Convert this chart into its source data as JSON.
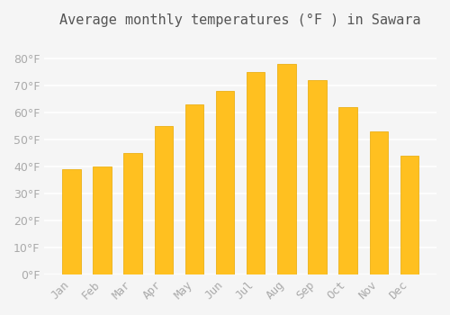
{
  "title": "Average monthly temperatures (°F ) in Sawara",
  "months": [
    "Jan",
    "Feb",
    "Mar",
    "Apr",
    "May",
    "Jun",
    "Jul",
    "Aug",
    "Sep",
    "Oct",
    "Nov",
    "Dec"
  ],
  "values": [
    39,
    40,
    45,
    55,
    63,
    68,
    75,
    78,
    72,
    62,
    53,
    44
  ],
  "bar_color_main": "#FFC020",
  "bar_color_edge": "#E8A800",
  "background_color": "#F5F5F5",
  "grid_color": "#FFFFFF",
  "ylim": [
    0,
    88
  ],
  "yticks": [
    0,
    10,
    20,
    30,
    40,
    50,
    60,
    70,
    80
  ],
  "tick_label_color": "#AAAAAA",
  "title_fontsize": 11,
  "tick_fontsize": 9
}
